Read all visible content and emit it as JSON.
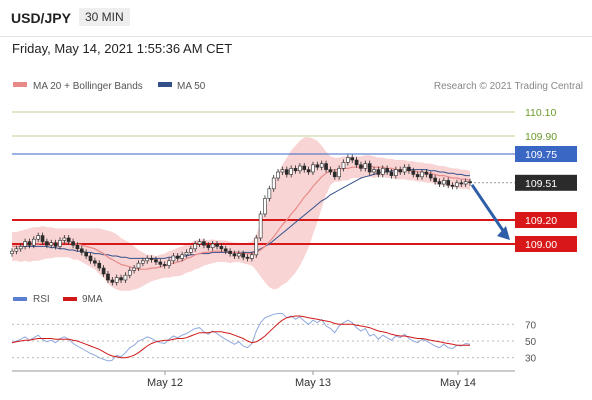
{
  "header": {
    "symbol": "USD/JPY",
    "timeframe": "30 MIN",
    "datetime": "Friday, May 14, 2021 1:55:36 AM CET"
  },
  "legend": {
    "items": [
      {
        "label": "MA 20 + Bollinger Bands",
        "color": "#e88a8a"
      },
      {
        "label": "MA 50",
        "color": "#34508a"
      }
    ],
    "credit": "Research © 2021 Trading Central"
  },
  "rsi_legend": {
    "items": [
      {
        "label": "RSI",
        "color": "#5a7fd0"
      },
      {
        "label": "9MA",
        "color": "#d01818"
      }
    ]
  },
  "chart_data": {
    "type": "candlestick",
    "ylim": [
      108.7,
      110.2
    ],
    "x_ticks": [
      "May 12",
      "May 13",
      "May 14"
    ],
    "levels": [
      {
        "value": 110.1,
        "label": "110.10",
        "color": "#6a9a2a",
        "kind": "resistance-light"
      },
      {
        "value": 109.9,
        "label": "109.90",
        "color": "#6a9a2a",
        "kind": "resistance-light"
      },
      {
        "value": 109.75,
        "label": "109.75",
        "color": "#3a66c4",
        "kind": "pivot"
      },
      {
        "value": 109.51,
        "label": "109.51",
        "color": "#333333",
        "kind": "last-price"
      },
      {
        "value": 109.2,
        "label": "109.20",
        "color": "#d81818",
        "kind": "support"
      },
      {
        "value": 109.0,
        "label": "109.00",
        "color": "#d81818",
        "kind": "support"
      }
    ],
    "close_series": [
      108.94,
      108.96,
      108.98,
      109.02,
      108.99,
      109.04,
      109.07,
      109.02,
      108.99,
      109.01,
      108.98,
      109.03,
      109.05,
      109.02,
      108.99,
      108.96,
      108.93,
      108.9,
      108.86,
      108.84,
      108.8,
      108.75,
      108.7,
      108.68,
      108.72,
      108.7,
      108.74,
      108.78,
      108.8,
      108.84,
      108.86,
      108.88,
      108.87,
      108.85,
      108.83,
      108.82,
      108.86,
      108.9,
      108.88,
      108.91,
      108.93,
      108.96,
      109.0,
      109.02,
      108.99,
      108.97,
      109.0,
      108.98,
      108.96,
      108.94,
      108.92,
      108.9,
      108.92,
      108.89,
      108.88,
      108.91,
      109.05,
      109.25,
      109.38,
      109.46,
      109.55,
      109.6,
      109.62,
      109.58,
      109.63,
      109.61,
      109.65,
      109.62,
      109.6,
      109.66,
      109.64,
      109.67,
      109.62,
      109.6,
      109.56,
      109.63,
      109.68,
      109.72,
      109.7,
      109.66,
      109.63,
      109.67,
      109.6,
      109.62,
      109.58,
      109.63,
      109.6,
      109.57,
      109.62,
      109.6,
      109.64,
      109.61,
      109.58,
      109.56,
      109.6,
      109.58,
      109.55,
      109.52,
      109.5,
      109.53,
      109.49,
      109.48,
      109.51,
      109.5,
      109.52,
      109.51
    ],
    "ma20_series": [
      108.98,
      108.98,
      108.98,
      108.99,
      108.99,
      109.0,
      109.0,
      109.01,
      109.01,
      109.01,
      109.01,
      109.01,
      109.01,
      109.01,
      109.0,
      109.0,
      108.99,
      108.98,
      108.97,
      108.96,
      108.94,
      108.92,
      108.89,
      108.87,
      108.85,
      108.83,
      108.82,
      108.81,
      108.8,
      108.79,
      108.79,
      108.79,
      108.8,
      108.8,
      108.81,
      108.82,
      108.83,
      108.84,
      108.85,
      108.86,
      108.88,
      108.89,
      108.91,
      108.92,
      108.93,
      108.93,
      108.94,
      108.94,
      108.94,
      108.94,
      108.93,
      108.93,
      108.93,
      108.92,
      108.92,
      108.92,
      108.93,
      108.95,
      108.98,
      109.02,
      109.06,
      109.11,
      109.16,
      109.2,
      109.25,
      109.29,
      109.34,
      109.39,
      109.43,
      109.48,
      109.52,
      109.56,
      109.59,
      109.61,
      109.62,
      109.62,
      109.63,
      109.63,
      109.64,
      109.64,
      109.64,
      109.65,
      109.65,
      109.64,
      109.64,
      109.64,
      109.63,
      109.63,
      109.62,
      109.62,
      109.62,
      109.61,
      109.61,
      109.6,
      109.6,
      109.59,
      109.59,
      109.58,
      109.57,
      109.57,
      109.56,
      109.55,
      109.55,
      109.54,
      109.54,
      109.53
    ],
    "ma50_series": [
      108.98,
      108.98,
      108.98,
      108.98,
      108.98,
      108.98,
      108.98,
      108.98,
      108.98,
      108.97,
      108.97,
      108.96,
      108.96,
      108.95,
      108.95,
      108.94,
      108.94,
      108.93,
      108.93,
      108.92,
      108.92,
      108.91,
      108.91,
      108.9,
      108.9,
      108.89,
      108.89,
      108.88,
      108.88,
      108.88,
      108.88,
      108.88,
      108.88,
      108.88,
      108.88,
      108.88,
      108.89,
      108.89,
      108.89,
      108.9,
      108.9,
      108.91,
      108.91,
      108.92,
      108.92,
      108.92,
      108.93,
      108.93,
      108.93,
      108.93,
      108.93,
      108.93,
      108.93,
      108.93,
      108.93,
      108.93,
      108.94,
      108.96,
      108.98,
      109.0,
      109.03,
      109.06,
      109.09,
      109.12,
      109.15,
      109.18,
      109.21,
      109.24,
      109.27,
      109.3,
      109.33,
      109.36,
      109.38,
      109.41,
      109.43,
      109.45,
      109.47,
      109.49,
      109.51,
      109.53,
      109.55,
      109.56,
      109.57,
      109.58,
      109.59,
      109.6,
      109.6,
      109.61,
      109.61,
      109.62,
      109.62,
      109.62,
      109.62,
      109.62,
      109.62,
      109.62,
      109.61,
      109.61,
      109.6,
      109.6,
      109.59,
      109.59,
      109.58,
      109.58,
      109.57,
      109.57
    ],
    "bollinger_halfwidth": [
      0.12,
      0.12,
      0.13,
      0.13,
      0.14,
      0.14,
      0.14,
      0.14,
      0.13,
      0.13,
      0.12,
      0.12,
      0.12,
      0.12,
      0.13,
      0.13,
      0.14,
      0.15,
      0.16,
      0.17,
      0.19,
      0.2,
      0.22,
      0.23,
      0.23,
      0.22,
      0.21,
      0.2,
      0.18,
      0.16,
      0.14,
      0.12,
      0.11,
      0.1,
      0.1,
      0.1,
      0.11,
      0.11,
      0.12,
      0.12,
      0.12,
      0.12,
      0.12,
      0.12,
      0.11,
      0.1,
      0.1,
      0.09,
      0.09,
      0.09,
      0.09,
      0.08,
      0.08,
      0.08,
      0.09,
      0.1,
      0.15,
      0.22,
      0.3,
      0.38,
      0.44,
      0.48,
      0.5,
      0.52,
      0.53,
      0.53,
      0.52,
      0.5,
      0.46,
      0.4,
      0.34,
      0.26,
      0.18,
      0.12,
      0.1,
      0.1,
      0.1,
      0.1,
      0.09,
      0.09,
      0.09,
      0.09,
      0.09,
      0.09,
      0.08,
      0.08,
      0.08,
      0.08,
      0.08,
      0.08,
      0.08,
      0.08,
      0.08,
      0.08,
      0.08,
      0.08,
      0.08,
      0.08,
      0.08,
      0.08,
      0.08,
      0.08,
      0.08,
      0.08,
      0.08,
      0.08
    ],
    "forecast_arrow": {
      "from": 109.51,
      "to": 109.0
    },
    "rsi": {
      "ylim": [
        20,
        80
      ],
      "ticks": [
        70,
        50,
        30
      ],
      "rsi_series": [
        48,
        50,
        52,
        55,
        51,
        54,
        57,
        52,
        49,
        51,
        48,
        53,
        55,
        52,
        47,
        44,
        41,
        38,
        35,
        33,
        30,
        28,
        26,
        27,
        33,
        31,
        36,
        42,
        45,
        50,
        52,
        55,
        53,
        50,
        48,
        47,
        52,
        56,
        54,
        57,
        59,
        62,
        65,
        66,
        61,
        58,
        62,
        59,
        55,
        52,
        49,
        46,
        49,
        44,
        42,
        47,
        62,
        72,
        78,
        80,
        82,
        83,
        83,
        78,
        80,
        76,
        79,
        74,
        70,
        75,
        72,
        76,
        68,
        65,
        60,
        68,
        72,
        75,
        72,
        66,
        62,
        65,
        56,
        58,
        52,
        57,
        54,
        51,
        56,
        54,
        58,
        53,
        50,
        48,
        52,
        50,
        47,
        44,
        42,
        46,
        42,
        41,
        45,
        44,
        47,
        46
      ],
      "ma9_series": [
        48,
        49,
        50,
        51,
        51,
        52,
        53,
        53,
        53,
        53,
        52,
        52,
        52,
        52,
        51,
        50,
        48,
        46,
        44,
        42,
        40,
        37,
        34,
        32,
        31,
        30,
        30,
        31,
        33,
        36,
        40,
        44,
        47,
        49,
        50,
        51,
        51,
        52,
        53,
        53,
        54,
        56,
        58,
        60,
        60,
        60,
        61,
        61,
        61,
        60,
        59,
        57,
        55,
        53,
        50,
        48,
        49,
        52,
        56,
        61,
        66,
        71,
        75,
        78,
        79,
        80,
        80,
        79,
        78,
        77,
        76,
        75,
        74,
        73,
        71,
        70,
        70,
        70,
        70,
        69,
        68,
        67,
        66,
        64,
        62,
        61,
        60,
        58,
        57,
        56,
        56,
        55,
        54,
        53,
        53,
        52,
        51,
        50,
        49,
        48,
        47,
        46,
        45,
        45,
        45,
        45
      ]
    }
  }
}
